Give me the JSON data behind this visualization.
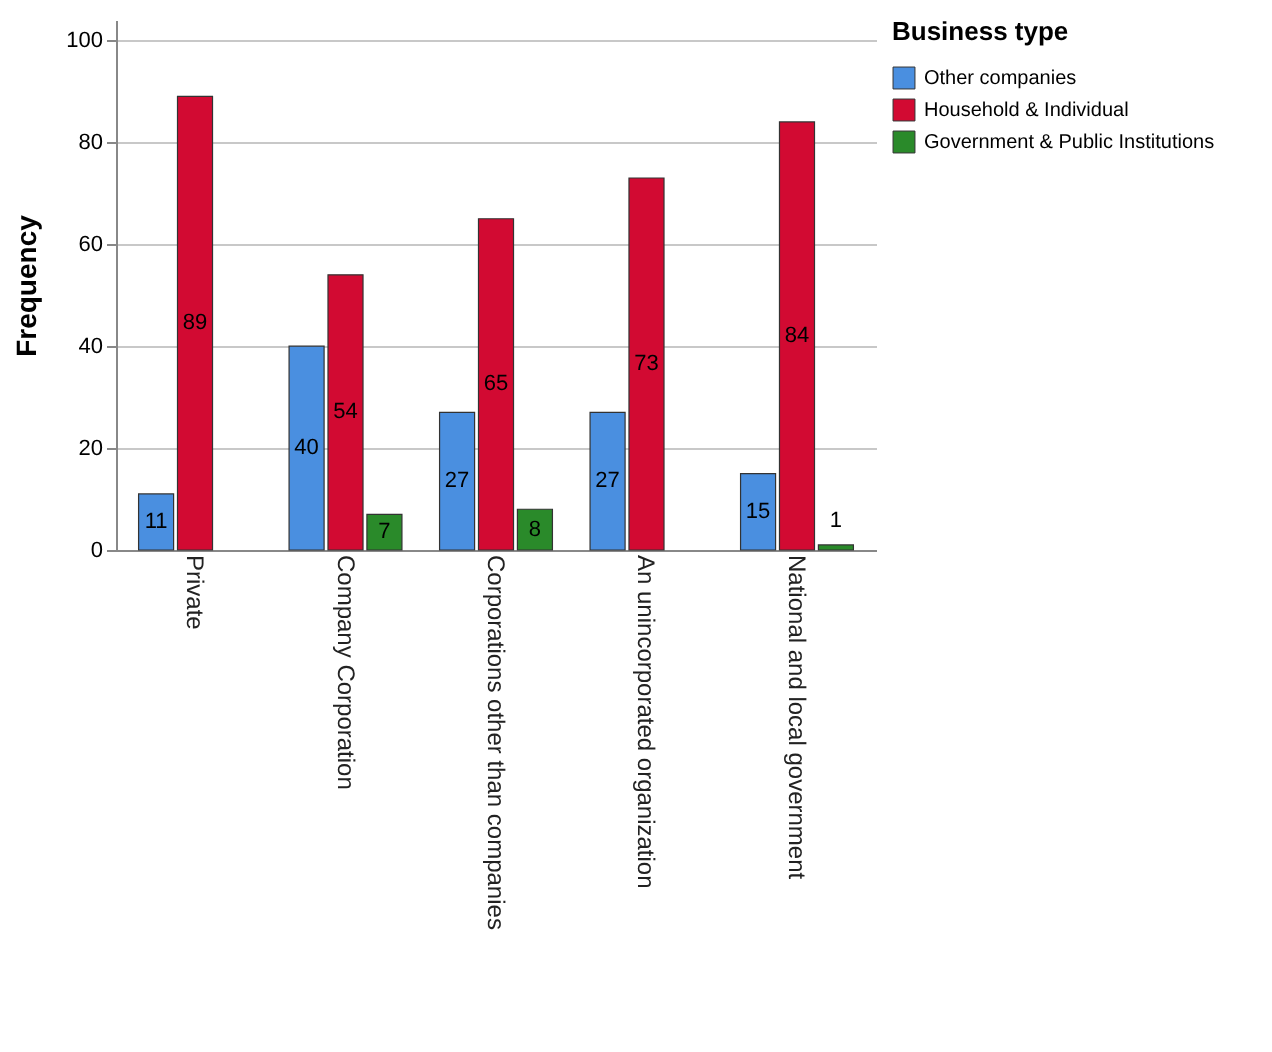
{
  "chart_data": {
    "type": "bar",
    "ylabel": "Frequency",
    "legend_title": "Business type",
    "categories": [
      "Private",
      "Company Corporation",
      "Corporations other than companies",
      "An unincorporated organization",
      "National and local government"
    ],
    "series": [
      {
        "name": "Other companies",
        "color": "#4a8fe0",
        "values": [
          11,
          40,
          27,
          27,
          15
        ]
      },
      {
        "name": "Household & Individual",
        "color": "#d20a32",
        "values": [
          89,
          54,
          65,
          73,
          84
        ]
      },
      {
        "name": "Government & Public Institutions",
        "color": "#2a8a2a",
        "values": [
          null,
          7,
          8,
          null,
          1
        ]
      }
    ],
    "ylim": [
      0,
      104
    ],
    "yticks": [
      0,
      20,
      40,
      60,
      80,
      100
    ],
    "grid": "y",
    "legend": "top right",
    "data_labels": true
  }
}
